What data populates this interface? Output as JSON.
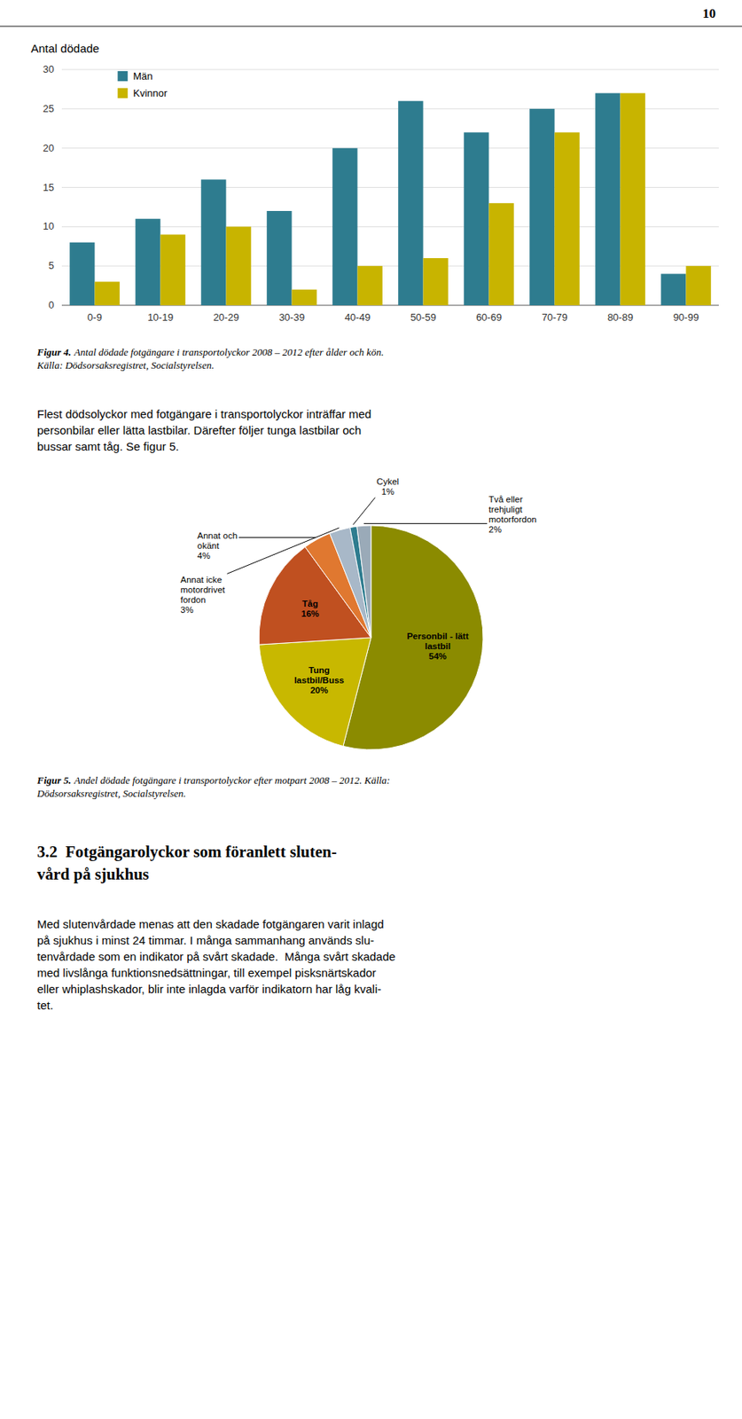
{
  "page": {
    "page_number": "10",
    "paragraph": "Flest dödsolyckor med fotgängare i transportolyckor inträffar med\npersonbilar eller lätta lastbilar. Därefter följer tunga lastbilar och\nbussar samt tåg. Se figur 5.",
    "heading": "3.2  Fotgängarolyckor som föranlett sluten-\nvård på sjukhus",
    "body": "Med slutenvårdade menas att den skadade fotgängaren varit inlagd\npå sjukhus i minst 24 timmar. I många sammanhang används slu-\ntenvårdade som en indikator på svårt skadade.  Många svårt skadade\nmed livslånga funktionsnedsättningar, till exempel pisksnärtskador\neller whiplashskador, blir inte inlagda varför indikatorn har låg kvali-\ntet."
  },
  "chart_data": [
    {
      "type": "bar",
      "title": "Antal dödade",
      "categories": [
        "0-9",
        "10-19",
        "20-29",
        "30-39",
        "40-49",
        "50-59",
        "60-69",
        "70-79",
        "80-89",
        "90-99"
      ],
      "series": [
        {
          "name": "Män",
          "color": "#2E7C8F",
          "values": [
            8,
            11,
            16,
            12,
            20,
            26,
            22,
            25,
            27,
            4
          ]
        },
        {
          "name": "Kvinnor",
          "color": "#C8B400",
          "values": [
            3,
            9,
            10,
            2,
            5,
            6,
            13,
            22,
            27,
            5
          ]
        }
      ],
      "ylim": [
        0,
        30
      ],
      "yticks": [
        0,
        5,
        10,
        15,
        20,
        25,
        30
      ],
      "grid": true,
      "legend": "upper left",
      "caption_label": "Figur 4.",
      "caption": "Antal dödade fotgängare i transportolyckor 2008 – 2012 efter ålder och kön.\nKälla: Dödsorsaksregistret, Socialstyrelsen."
    },
    {
      "type": "pie",
      "categories": [
        "Personbil - lätt\nlastbil",
        "Tung\nlastbil/Buss",
        "Tåg",
        "Annat och\nokänt",
        "Annat icke\nmotordrivet\nfordon",
        "Cykel",
        "Två eller\ntrehjuligt\nmotorfordon"
      ],
      "values": [
        54,
        20,
        16,
        4,
        3,
        1,
        2
      ],
      "value_labels": [
        "54%",
        "20%",
        "16%",
        "4%",
        "3%",
        "1%",
        "2%"
      ],
      "data_labels": true,
      "colors": [
        "#8B8B00",
        "#C8B800",
        "#C05020",
        "#E07830",
        "#A8B8C8",
        "#2E7C8F",
        "#9AAAB8"
      ],
      "caption_label": "Figur 5.",
      "caption": "Andel dödade fotgängare i transportolyckor efter motpart 2008 – 2012. Källa:\nDödsorsaksregistret, Socialstyrelsen."
    }
  ]
}
